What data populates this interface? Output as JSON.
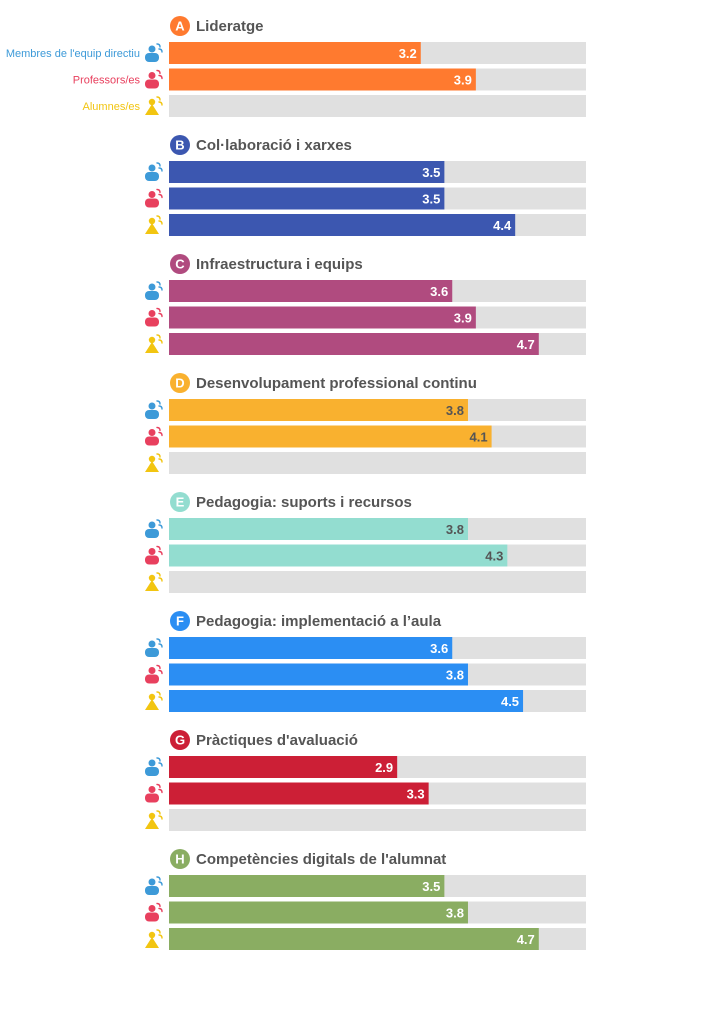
{
  "chart_data": {
    "type": "bar",
    "orientation": "horizontal",
    "xlim": [
      0,
      5
    ],
    "grid": false,
    "legend_position": "left",
    "series": [
      {
        "name": "Membres de l'equip directiu",
        "color": "#3d9ad8",
        "icon": "person-icon"
      },
      {
        "name": "Professors/es",
        "color": "#e8405e",
        "icon": "person-icon"
      },
      {
        "name": "Alumnes/es",
        "color": "#f2c511",
        "icon": "student-icon"
      }
    ],
    "categories": [
      {
        "letter": "A",
        "title": "Lideratge",
        "color": "#ff7a2f",
        "label_color": "#ffffff",
        "values": [
          3.2,
          3.9,
          null
        ]
      },
      {
        "letter": "B",
        "title": "Col·laboració i xarxes",
        "color": "#3c57b0",
        "label_color": "#ffffff",
        "values": [
          3.5,
          3.5,
          4.4
        ]
      },
      {
        "letter": "C",
        "title": "Infraestructura i equips",
        "color": "#b04b7f",
        "label_color": "#ffffff",
        "values": [
          3.6,
          3.9,
          4.7
        ]
      },
      {
        "letter": "D",
        "title": "Desenvolupament professional continu",
        "color": "#f9b12f",
        "label_color": "#555555",
        "values": [
          3.8,
          4.1,
          null
        ]
      },
      {
        "letter": "E",
        "title": "Pedagogia: suports i recursos",
        "color": "#93ddd0",
        "label_color": "#555555",
        "values": [
          3.8,
          4.3,
          null
        ]
      },
      {
        "letter": "F",
        "title": "Pedagogia: implementació a l’aula",
        "color": "#2b8ef3",
        "label_color": "#ffffff",
        "values": [
          3.6,
          3.8,
          4.5
        ]
      },
      {
        "letter": "G",
        "title": "Pràctiques d'avaluació",
        "color": "#cc1f36",
        "label_color": "#ffffff",
        "values": [
          2.9,
          3.3,
          null
        ]
      },
      {
        "letter": "H",
        "title": "Competències digitals de l'alumnat",
        "color": "#8aad62",
        "label_color": "#ffffff",
        "values": [
          3.5,
          3.8,
          4.7
        ]
      }
    ],
    "track_color": "#e0e0e0"
  }
}
